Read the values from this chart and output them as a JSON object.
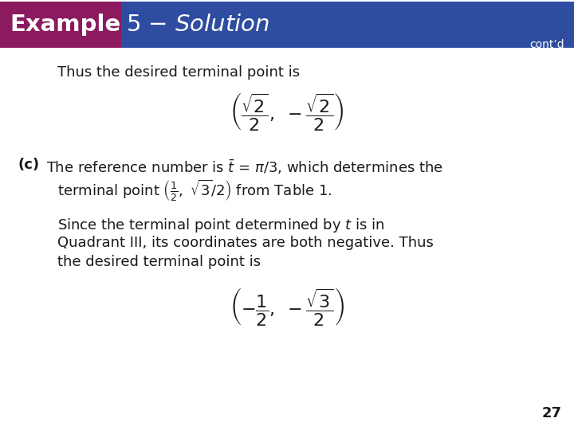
{
  "title_example": "Example",
  "title_number": "5",
  "title_contd": "cont’d",
  "bg_color": "#ffffff",
  "header_blue": "#2E4DA0",
  "header_purple": "#8B1A5E",
  "header_text_color": "#ffffff",
  "body_text_color": "#1a1a1a",
  "page_number": "27",
  "line1": "Thus the desired terminal point is",
  "part_c_label": "(c)",
  "since_line1": "Since the terminal point determined by ",
  "since_line2": "Quadrant III, its coordinates are both negative. Thus",
  "since_line3": "the desired terminal point is"
}
